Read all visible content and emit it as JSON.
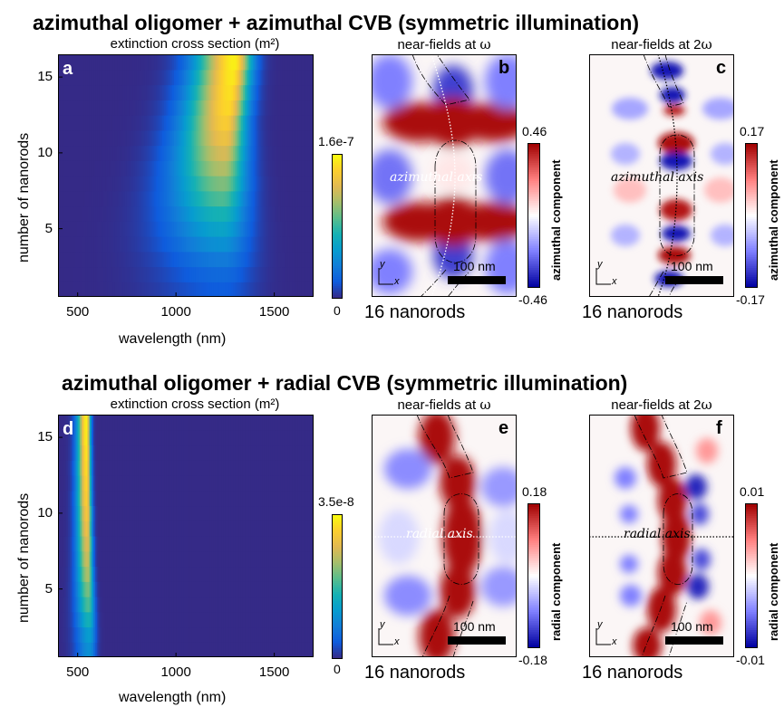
{
  "chart_data": [
    {
      "type": "heatmap",
      "panel": "a",
      "title": "extinction cross section (m²)",
      "xlabel": "wavelength (nm)",
      "ylabel": "number of nanorods",
      "xlim": [
        400,
        1700
      ],
      "ylim": [
        1,
        16
      ],
      "xticks": [
        "500",
        "1000",
        "1500"
      ],
      "yticks": [
        "5",
        "10",
        "15"
      ],
      "colorbar": {
        "max_label": "1.6e-7",
        "min_label": "0"
      },
      "rows": [
        {
          "n": 1,
          "peak_nm": 1240,
          "width_nm": 600,
          "peak_value": 0.12
        },
        {
          "n": 2,
          "peak_nm": 1240,
          "width_nm": 580,
          "peak_value": 0.16
        },
        {
          "n": 3,
          "peak_nm": 1240,
          "width_nm": 560,
          "peak_value": 0.22
        },
        {
          "n": 4,
          "peak_nm": 1235,
          "width_nm": 540,
          "peak_value": 0.3
        },
        {
          "n": 5,
          "peak_nm": 1235,
          "width_nm": 520,
          "peak_value": 0.38
        },
        {
          "n": 6,
          "peak_nm": 1235,
          "width_nm": 500,
          "peak_value": 0.46
        },
        {
          "n": 7,
          "peak_nm": 1235,
          "width_nm": 480,
          "peak_value": 0.55
        },
        {
          "n": 8,
          "peak_nm": 1240,
          "width_nm": 460,
          "peak_value": 0.63
        },
        {
          "n": 9,
          "peak_nm": 1240,
          "width_nm": 440,
          "peak_value": 0.71
        },
        {
          "n": 10,
          "peak_nm": 1245,
          "width_nm": 420,
          "peak_value": 0.78
        },
        {
          "n": 11,
          "peak_nm": 1250,
          "width_nm": 400,
          "peak_value": 0.85
        },
        {
          "n": 12,
          "peak_nm": 1255,
          "width_nm": 380,
          "peak_value": 0.9
        },
        {
          "n": 13,
          "peak_nm": 1265,
          "width_nm": 370,
          "peak_value": 0.94
        },
        {
          "n": 14,
          "peak_nm": 1275,
          "width_nm": 360,
          "peak_value": 0.96
        },
        {
          "n": 15,
          "peak_nm": 1285,
          "width_nm": 350,
          "peak_value": 0.98
        },
        {
          "n": 16,
          "peak_nm": 1295,
          "width_nm": 340,
          "peak_value": 1.0
        }
      ]
    },
    {
      "type": "heatmap",
      "panel": "d",
      "title": "extinction cross section (m²)",
      "xlabel": "wavelength (nm)",
      "ylabel": "number of nanorods",
      "xlim": [
        400,
        1700
      ],
      "ylim": [
        1,
        16
      ],
      "xticks": [
        "500",
        "1000",
        "1500"
      ],
      "yticks": [
        "5",
        "10",
        "15"
      ],
      "colorbar": {
        "max_label": "3.5e-8",
        "min_label": "0"
      },
      "rows": [
        {
          "n": 1,
          "peak_nm": 560,
          "width_nm": 120,
          "peak_value": 0.3
        },
        {
          "n": 2,
          "peak_nm": 560,
          "width_nm": 120,
          "peak_value": 0.35
        },
        {
          "n": 3,
          "peak_nm": 558,
          "width_nm": 115,
          "peak_value": 0.45
        },
        {
          "n": 4,
          "peak_nm": 556,
          "width_nm": 110,
          "peak_value": 0.55
        },
        {
          "n": 5,
          "peak_nm": 554,
          "width_nm": 105,
          "peak_value": 0.62
        },
        {
          "n": 6,
          "peak_nm": 552,
          "width_nm": 100,
          "peak_value": 0.7
        },
        {
          "n": 7,
          "peak_nm": 550,
          "width_nm": 95,
          "peak_value": 0.76
        },
        {
          "n": 8,
          "peak_nm": 550,
          "width_nm": 95,
          "peak_value": 0.8
        },
        {
          "n": 9,
          "peak_nm": 548,
          "width_nm": 90,
          "peak_value": 0.85
        },
        {
          "n": 10,
          "peak_nm": 548,
          "width_nm": 90,
          "peak_value": 0.88
        },
        {
          "n": 11,
          "peak_nm": 546,
          "width_nm": 88,
          "peak_value": 0.91
        },
        {
          "n": 12,
          "peak_nm": 546,
          "width_nm": 85,
          "peak_value": 0.93
        },
        {
          "n": 13,
          "peak_nm": 545,
          "width_nm": 85,
          "peak_value": 0.95
        },
        {
          "n": 14,
          "peak_nm": 545,
          "width_nm": 82,
          "peak_value": 0.97
        },
        {
          "n": 15,
          "peak_nm": 544,
          "width_nm": 80,
          "peak_value": 0.99
        },
        {
          "n": 16,
          "peak_nm": 544,
          "width_nm": 80,
          "peak_value": 1.0
        }
      ]
    }
  ],
  "fields": {
    "row1": {
      "title": "azimuthal oligomer + azimuthal CVB (symmetric illumination)",
      "panels": [
        {
          "letter": "b",
          "subtitle": "near-fields at ",
          "freq": "ω",
          "axis_text": "azimuthal axis",
          "cbar_max": "0.46",
          "cbar_min": "-0.46",
          "component": "azimuthal component",
          "scalebar": "100 nm",
          "caption": "16 nanorods",
          "x_label": "x",
          "y_label": "y"
        },
        {
          "letter": "c",
          "subtitle": "near-fields at 2",
          "freq": "ω",
          "axis_text": "azimuthal axis",
          "cbar_max": "0.17",
          "cbar_min": "-0.17",
          "component": "azimuthal component",
          "scalebar": "100 nm",
          "caption": "16 nanorods",
          "x_label": "x",
          "y_label": "y"
        }
      ]
    },
    "row2": {
      "title": "azimuthal oligomer + radial CVB (symmetric illumination)",
      "panels": [
        {
          "letter": "e",
          "subtitle": "near-fields at ",
          "freq": "ω",
          "axis_text": "radial axis",
          "cbar_max": "0.18",
          "cbar_min": "-0.18",
          "component": "radial component",
          "scalebar": "100 nm",
          "caption": "16 nanorods",
          "x_label": "x",
          "y_label": "y"
        },
        {
          "letter": "f",
          "subtitle": "near-fields at 2",
          "freq": "ω",
          "axis_text": "radial axis",
          "cbar_max": "0.01",
          "cbar_min": "-0.01",
          "component": "radial component",
          "scalebar": "100 nm",
          "caption": "16 nanorods",
          "x_label": "x",
          "y_label": "y"
        }
      ]
    }
  },
  "panel_letters": {
    "a": "a",
    "d": "d"
  },
  "colors": {
    "parula_low": "#352a87",
    "parula_high": "#f9fb0e",
    "field_neg": "#0000aa",
    "field_pos": "#aa0000"
  }
}
